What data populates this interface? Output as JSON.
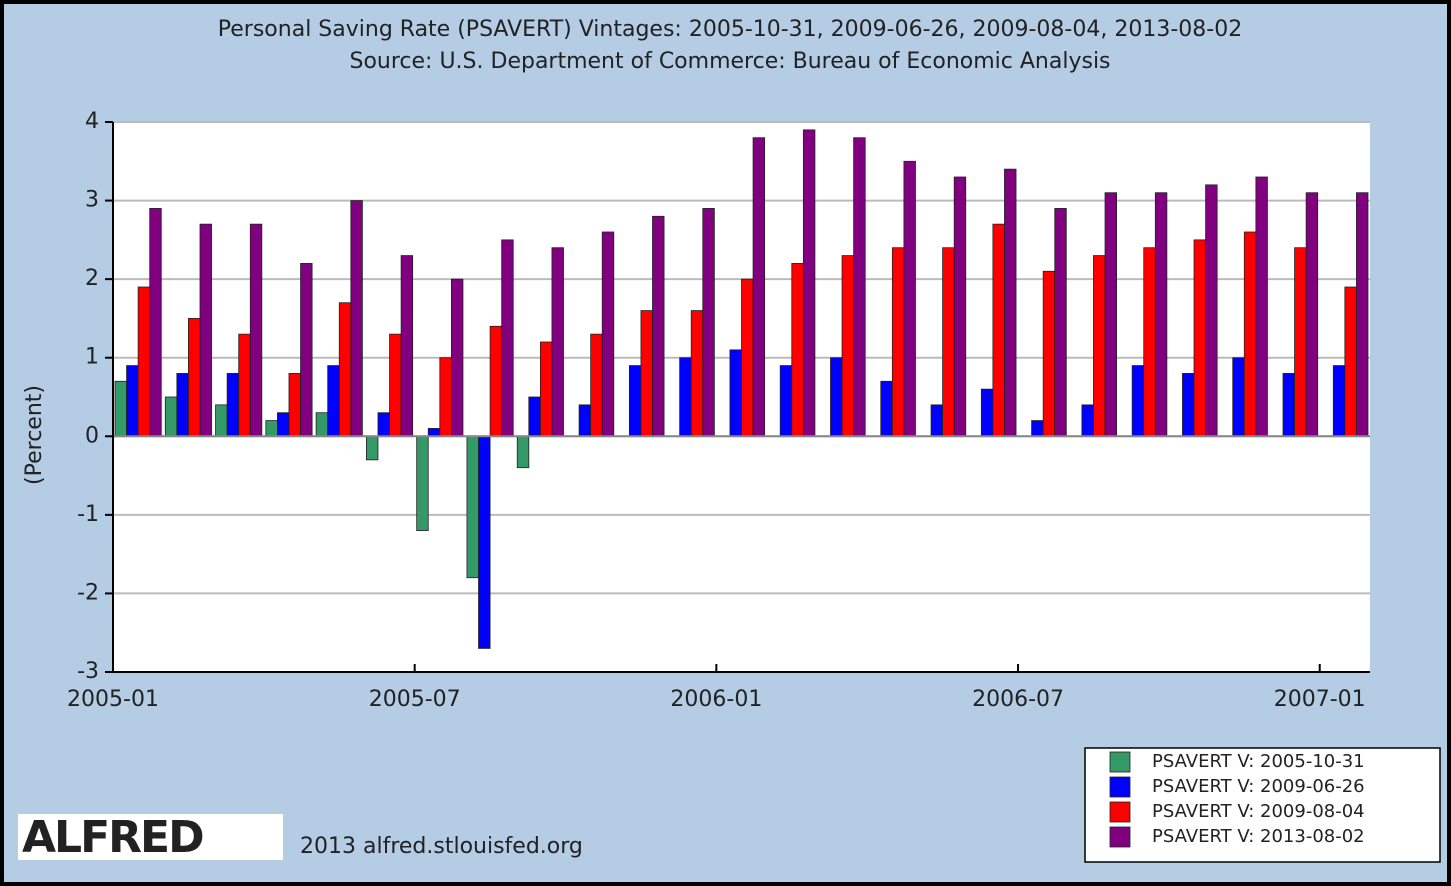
{
  "chart_data": {
    "type": "bar",
    "title": "Personal Saving Rate (PSAVERT) Vintages: 2005-10-31, 2009-06-26, 2009-08-04, 2013-08-02",
    "subtitle": "Source: U.S. Department of Commerce: Bureau of Economic Analysis",
    "y_label": "(Percent)",
    "x": [
      "2005-01",
      "2005-02",
      "2005-03",
      "2005-04",
      "2005-05",
      "2005-06",
      "2005-07",
      "2005-08",
      "2005-09",
      "2005-10",
      "2005-11",
      "2005-12",
      "2006-01",
      "2006-02",
      "2006-03",
      "2006-04",
      "2006-05",
      "2006-06",
      "2006-07",
      "2006-08",
      "2006-09",
      "2006-10",
      "2006-11",
      "2006-12",
      "2007-01"
    ],
    "xticks": [
      "2005-01",
      "2005-07",
      "2006-01",
      "2006-07",
      "2007-01"
    ],
    "series": [
      {
        "name": "PSAVERT V: 2005-10-31",
        "color": "#339966",
        "values": [
          0.7,
          0.5,
          0.4,
          0.2,
          0.3,
          -0.3,
          -1.2,
          -1.8,
          -0.4,
          null,
          null,
          null,
          null,
          null,
          null,
          null,
          null,
          null,
          null,
          null,
          null,
          null,
          null,
          null,
          null
        ]
      },
      {
        "name": "PSAVERT V: 2009-06-26",
        "color": "#0000ff",
        "values": [
          0.9,
          0.8,
          0.8,
          0.3,
          0.9,
          0.3,
          0.1,
          -2.7,
          0.5,
          0.4,
          0.9,
          1.0,
          1.1,
          0.9,
          1.0,
          0.7,
          0.4,
          0.6,
          0.2,
          0.4,
          0.9,
          0.8,
          1.0,
          0.8,
          0.9
        ]
      },
      {
        "name": "PSAVERT V: 2009-08-04",
        "color": "#ff0000",
        "values": [
          1.9,
          1.5,
          1.3,
          0.8,
          1.7,
          1.3,
          1.0,
          1.4,
          1.2,
          1.3,
          1.6,
          1.6,
          2.0,
          2.2,
          2.3,
          2.4,
          2.4,
          2.7,
          2.1,
          2.3,
          2.4,
          2.5,
          2.6,
          2.4,
          1.9
        ]
      },
      {
        "name": "PSAVERT V: 2013-08-02",
        "color": "#800080",
        "values": [
          2.9,
          2.7,
          2.7,
          2.2,
          3.0,
          2.3,
          2.0,
          2.5,
          2.4,
          2.6,
          2.8,
          2.9,
          3.8,
          3.9,
          3.8,
          3.5,
          3.3,
          3.4,
          2.9,
          3.1,
          3.1,
          3.2,
          3.3,
          3.1,
          3.1
        ]
      }
    ],
    "ylim": [
      -3,
      4
    ],
    "yticks": [
      -3,
      -2,
      -1,
      0,
      1,
      2,
      3,
      4
    ],
    "grid": true,
    "legend": "lower right",
    "logo": "ALFRED",
    "footer": "2013 alfred.stlouisfed.org"
  }
}
